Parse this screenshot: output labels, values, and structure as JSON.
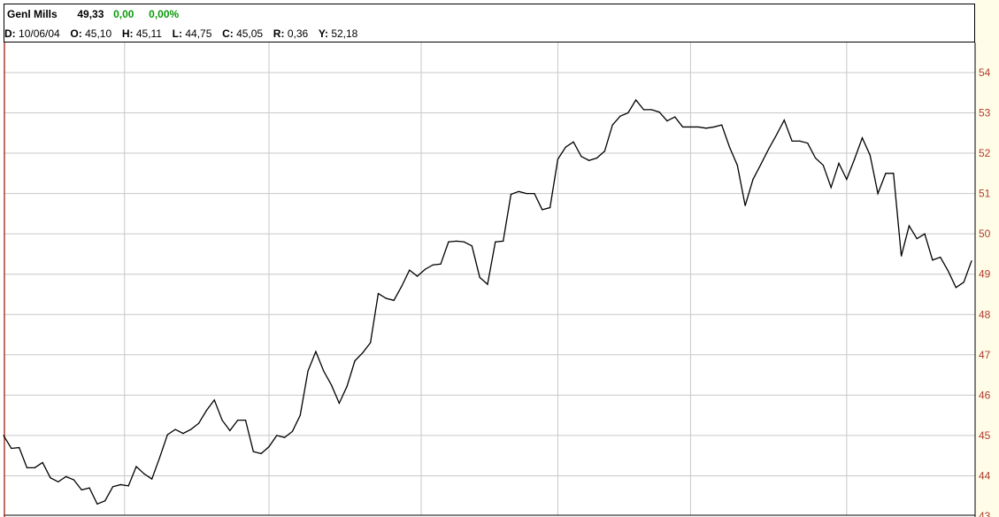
{
  "header": {
    "symbol": "Genl Mills",
    "last": "49,33",
    "change": "0,00",
    "change_pct": "0,00%",
    "date_label": "D:",
    "date": "10/06/04",
    "open_label": "O:",
    "open": "45,10",
    "high_label": "H:",
    "high": "45,11",
    "low_label": "L:",
    "low": "44,75",
    "close_label": "C:",
    "close": "45,05",
    "range_label": "R:",
    "range": "0,36",
    "y_label": "Y:",
    "y": "52,18"
  },
  "colors": {
    "line": "#000000",
    "grid": "#c8c8c8",
    "axis_text": "#b03a2e",
    "change": "#0a9a0a",
    "axis_background": "#fffde8",
    "left_marker": "#b03a2e"
  },
  "chart_data": {
    "type": "line",
    "title": "Genl Mills",
    "xlabel": "",
    "ylabel": "",
    "ylim": [
      43,
      54.2
    ],
    "yticks": [
      43,
      44,
      45,
      46,
      47,
      48,
      49,
      50,
      51,
      52,
      53,
      54
    ],
    "ytick_labels": [
      "43",
      "44",
      "45",
      "46",
      "47",
      "48",
      "49",
      "50",
      "51",
      "52",
      "53",
      "54"
    ],
    "grid": true,
    "vertical_gridlines_at_index": [
      15.5,
      34,
      53.5,
      71,
      88,
      108
    ],
    "series": [
      {
        "values": [
          45.0,
          44.68,
          44.7,
          44.2,
          44.2,
          44.33,
          43.95,
          43.85,
          43.98,
          43.9,
          43.65,
          43.7,
          43.3,
          43.38,
          43.73,
          43.78,
          43.75,
          44.23,
          44.05,
          43.92,
          44.45,
          45.02,
          45.15,
          45.05,
          45.15,
          45.3,
          45.62,
          45.88,
          45.38,
          45.12,
          45.38,
          45.38,
          44.6,
          44.55,
          44.72,
          45.0,
          44.95,
          45.1,
          45.5,
          46.6,
          47.08,
          46.6,
          46.25,
          45.8,
          46.22,
          46.85,
          47.05,
          47.3,
          48.52,
          48.4,
          48.35,
          48.7,
          49.1,
          48.95,
          49.12,
          49.23,
          49.25,
          49.8,
          49.82,
          49.8,
          49.7,
          48.92,
          48.75,
          49.8,
          49.82,
          50.98,
          51.05,
          51.0,
          51.0,
          50.6,
          50.65,
          51.85,
          52.15,
          52.28,
          51.92,
          51.82,
          51.88,
          52.05,
          52.7,
          52.92,
          53.0,
          53.32,
          53.08,
          53.08,
          53.02,
          52.8,
          52.9,
          52.65,
          52.65,
          52.65,
          52.62,
          52.65,
          52.7,
          52.15,
          51.7,
          50.7,
          51.35,
          51.72,
          52.1,
          52.45,
          52.82,
          52.3,
          52.3,
          52.25,
          51.88,
          51.7,
          51.15,
          51.75,
          51.35,
          51.85,
          52.38,
          51.95,
          51.0,
          51.5,
          51.5,
          49.45,
          50.2,
          49.88,
          50.0,
          49.35,
          49.42,
          49.08,
          48.67,
          48.8,
          49.33
        ]
      }
    ]
  }
}
